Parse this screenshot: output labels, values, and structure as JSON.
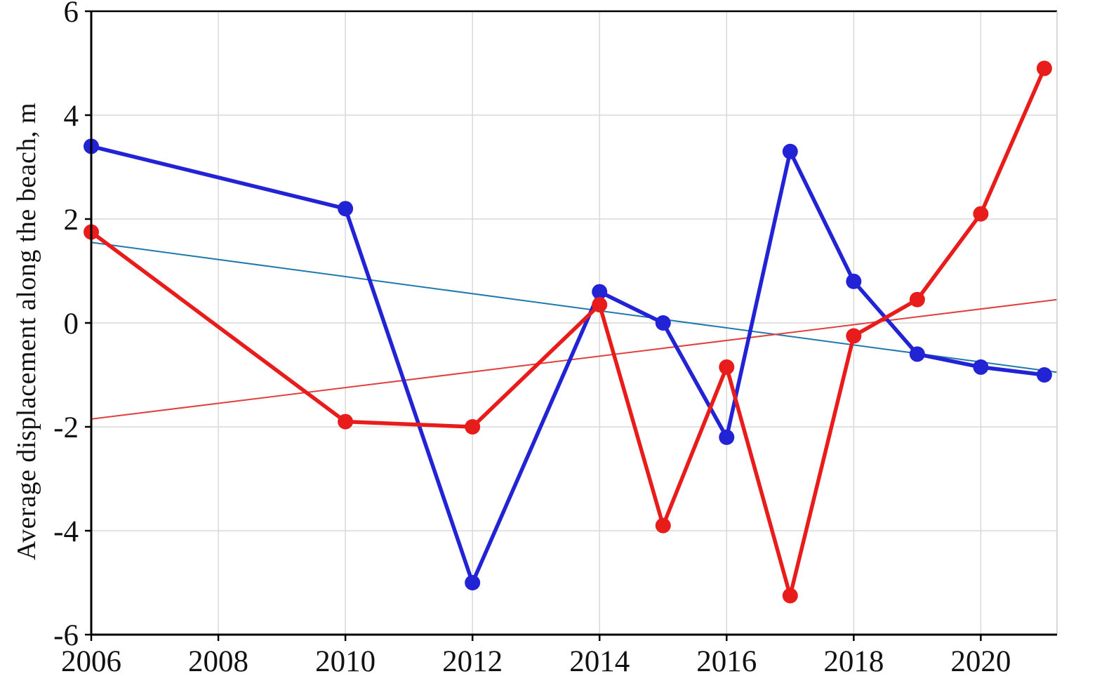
{
  "page": {
    "background": "#ffffff"
  },
  "chart_data": {
    "type": "line",
    "title": "",
    "xlabel": "",
    "ylabel": "Average displacement along the beach, m",
    "xlim": [
      2006,
      2021.2
    ],
    "ylim": [
      -6,
      6
    ],
    "x_ticks": [
      2006,
      2008,
      2010,
      2012,
      2014,
      2016,
      2018,
      2020
    ],
    "y_ticks": [
      -6,
      -4,
      -2,
      0,
      2,
      4,
      6
    ],
    "grid": true,
    "legend_position": "none",
    "x": [
      2006,
      2010,
      2012,
      2014,
      2015,
      2016,
      2017,
      2018,
      2019,
      2020,
      2021
    ],
    "series": [
      {
        "name": "blue-series",
        "color": "#2123d4",
        "values": [
          3.4,
          2.2,
          -5.0,
          0.6,
          0.0,
          -2.2,
          3.3,
          0.8,
          -0.6,
          -0.85,
          -1.0
        ]
      },
      {
        "name": "red-series",
        "color": "#e91c1c",
        "values": [
          1.75,
          -1.9,
          -2.0,
          0.35,
          -3.9,
          -0.85,
          -5.25,
          -0.25,
          0.45,
          2.1,
          4.9
        ]
      }
    ],
    "trend_lines": [
      {
        "name": "blue-trend-line",
        "color": "#2079ae",
        "x": [
          2006,
          2021.2
        ],
        "y": [
          1.55,
          -0.95
        ]
      },
      {
        "name": "red-trend-line",
        "color": "#e04040",
        "x": [
          2006,
          2021.2
        ],
        "y": [
          -1.85,
          0.45
        ]
      }
    ]
  },
  "style": {
    "grid_color": "#d9d9d9",
    "axis_color": "#000000",
    "right_border_color": "#cccccc",
    "marker_radius": 11,
    "line_width": 5.5,
    "trend_width": 2,
    "grid_width": 1.5,
    "axis_width": 3
  }
}
